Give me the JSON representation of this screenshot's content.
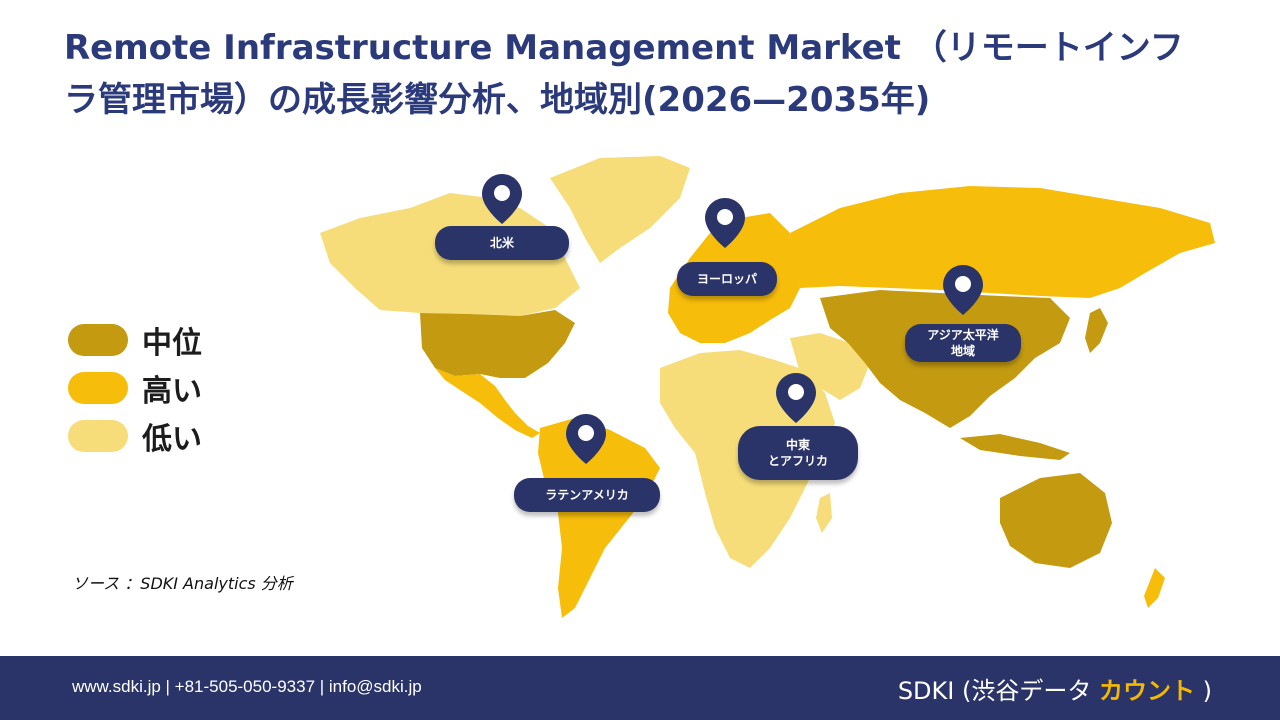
{
  "title": "Remote Infrastructure Management Market （リモートインフラ管理市場）の成長影響分析、地域別(2026—2035年)",
  "colors": {
    "medium": "#c39a10",
    "high": "#f7bd0b",
    "low": "#f6dd79",
    "navy": "#2b3468"
  },
  "legend": [
    {
      "label": "中位",
      "color": "#c39a10"
    },
    {
      "label": "高い",
      "color": "#f7bd0b"
    },
    {
      "label": "低い",
      "color": "#f6dd79"
    }
  ],
  "regions": [
    {
      "name": "北米",
      "level": "中位"
    },
    {
      "name": "ヨーロッパ",
      "level": "高い"
    },
    {
      "name": "アジア太平洋 地域",
      "level": "中位"
    },
    {
      "name": "中東 とアフリカ",
      "level": "低い"
    },
    {
      "name": "ラテンアメリカ",
      "level": "高い"
    }
  ],
  "labels": {
    "north_america": "北米",
    "europe": "ヨーロッパ",
    "apac_line1": "アジア太平洋",
    "apac_line2": "地域",
    "mea_line1": "中東",
    "mea_line2": "とアフリカ",
    "latam": "ラテンアメリカ"
  },
  "source": "ソース ：SDKI Analytics 分析",
  "footer": {
    "contact": "www.sdki.jp | +81-505-050-9337 | info@sdki.jp",
    "brand_main": "SDKI (渋谷データ",
    "brand_accent": "カウント",
    "brand_close": ")"
  }
}
